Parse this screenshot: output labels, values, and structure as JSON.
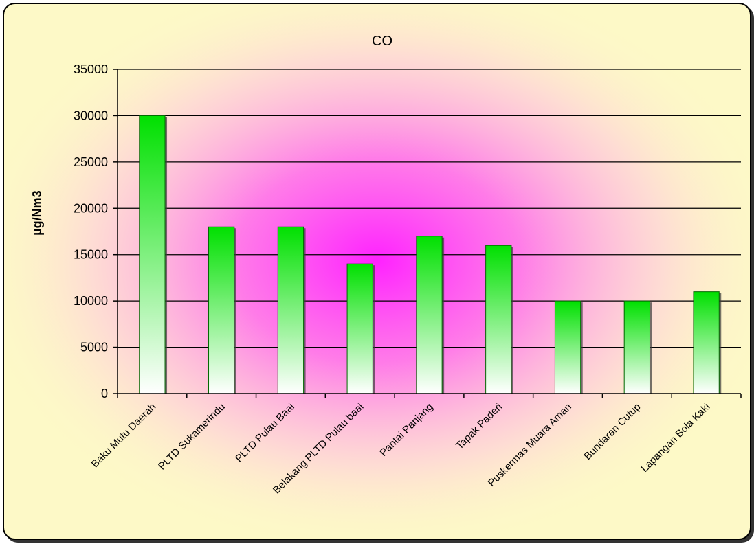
{
  "chart_data": {
    "type": "bar",
    "title": "CO",
    "xlabel": "",
    "ylabel": "µg/Nm3",
    "ylim": [
      0,
      35000
    ],
    "yticks": [
      0,
      5000,
      10000,
      15000,
      20000,
      25000,
      30000,
      35000
    ],
    "grid": true,
    "categories": [
      "Baku Mutu Daerah",
      "PLTD Sukamerindu",
      "PLTD Pulau Baai",
      "Belakang PLTD Pulau baai",
      "Pantai Panjang",
      "Tapak Paderi",
      "Puskermas Muara Aman",
      "Bundaran Cutup",
      "Lapangan Bola Kaki"
    ],
    "values": [
      30000,
      18000,
      18000,
      14000,
      17000,
      16000,
      10000,
      10000,
      11000
    ],
    "colors": {
      "bar_top": "#00e000",
      "bar_bottom": "#ffffff",
      "background": "#fdf9c7",
      "glow": "#ff33ff"
    }
  }
}
